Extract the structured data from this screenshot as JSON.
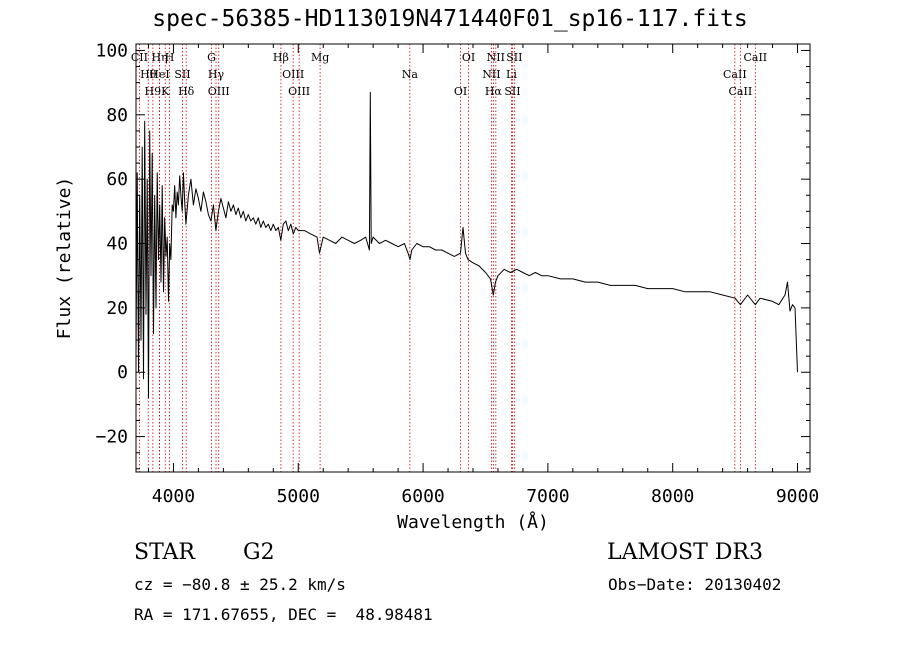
{
  "chart_data": {
    "type": "line",
    "title": "spec-56385-HD113019N471440F01_sp16-117.fits",
    "xlabel": "Wavelength (Å)",
    "ylabel": "Flux (relative)",
    "xlim": [
      3700,
      9100
    ],
    "ylim": [
      -31,
      102
    ],
    "xticks": [
      4000,
      5000,
      6000,
      7000,
      8000,
      9000
    ],
    "yticks": [
      -20,
      0,
      20,
      40,
      60,
      80,
      100
    ],
    "series": [
      {
        "name": "flux",
        "points": [
          [
            3700,
            5
          ],
          [
            3710,
            62
          ],
          [
            3720,
            0
          ],
          [
            3730,
            55
          ],
          [
            3740,
            10
          ],
          [
            3750,
            70
          ],
          [
            3760,
            -2
          ],
          [
            3770,
            78
          ],
          [
            3780,
            18
          ],
          [
            3790,
            60
          ],
          [
            3800,
            -8
          ],
          [
            3810,
            75
          ],
          [
            3820,
            30
          ],
          [
            3830,
            68
          ],
          [
            3840,
            12
          ],
          [
            3850,
            55
          ],
          [
            3860,
            20
          ],
          [
            3870,
            62
          ],
          [
            3880,
            35
          ],
          [
            3890,
            52
          ],
          [
            3900,
            28
          ],
          [
            3910,
            58
          ],
          [
            3920,
            25
          ],
          [
            3930,
            48
          ],
          [
            3940,
            36
          ],
          [
            3950,
            42
          ],
          [
            3960,
            22
          ],
          [
            3970,
            40
          ],
          [
            3980,
            35
          ],
          [
            3990,
            52
          ],
          [
            4000,
            50
          ],
          [
            4010,
            58
          ],
          [
            4020,
            48
          ],
          [
            4030,
            56
          ],
          [
            4040,
            52
          ],
          [
            4050,
            61
          ],
          [
            4060,
            55
          ],
          [
            4070,
            50
          ],
          [
            4080,
            62
          ],
          [
            4090,
            53
          ],
          [
            4100,
            46
          ],
          [
            4120,
            55
          ],
          [
            4140,
            60
          ],
          [
            4160,
            52
          ],
          [
            4180,
            57
          ],
          [
            4200,
            54
          ],
          [
            4220,
            50
          ],
          [
            4240,
            56
          ],
          [
            4260,
            53
          ],
          [
            4280,
            49
          ],
          [
            4300,
            47
          ],
          [
            4320,
            52
          ],
          [
            4340,
            44
          ],
          [
            4360,
            50
          ],
          [
            4380,
            54
          ],
          [
            4400,
            51
          ],
          [
            4420,
            48
          ],
          [
            4440,
            53
          ],
          [
            4460,
            50
          ],
          [
            4480,
            52
          ],
          [
            4500,
            49
          ],
          [
            4520,
            51
          ],
          [
            4540,
            48
          ],
          [
            4560,
            50
          ],
          [
            4580,
            47
          ],
          [
            4600,
            49
          ],
          [
            4620,
            47
          ],
          [
            4640,
            48
          ],
          [
            4660,
            46
          ],
          [
            4680,
            48
          ],
          [
            4700,
            45
          ],
          [
            4720,
            47
          ],
          [
            4740,
            45
          ],
          [
            4760,
            46
          ],
          [
            4780,
            44
          ],
          [
            4800,
            46
          ],
          [
            4820,
            44
          ],
          [
            4840,
            45
          ],
          [
            4860,
            41
          ],
          [
            4880,
            46
          ],
          [
            4900,
            47
          ],
          [
            4920,
            44
          ],
          [
            4940,
            46
          ],
          [
            4960,
            43
          ],
          [
            4980,
            45
          ],
          [
            5000,
            44
          ],
          [
            5050,
            44
          ],
          [
            5100,
            43
          ],
          [
            5150,
            42
          ],
          [
            5170,
            37
          ],
          [
            5200,
            42
          ],
          [
            5250,
            41
          ],
          [
            5300,
            40
          ],
          [
            5350,
            42
          ],
          [
            5400,
            41
          ],
          [
            5450,
            40
          ],
          [
            5500,
            41
          ],
          [
            5540,
            42
          ],
          [
            5570,
            38
          ],
          [
            5577,
            87
          ],
          [
            5584,
            40
          ],
          [
            5600,
            42
          ],
          [
            5650,
            40
          ],
          [
            5700,
            41
          ],
          [
            5750,
            40
          ],
          [
            5800,
            39
          ],
          [
            5850,
            40
          ],
          [
            5880,
            37
          ],
          [
            5895,
            35
          ],
          [
            5910,
            38
          ],
          [
            5950,
            40
          ],
          [
            6000,
            39
          ],
          [
            6050,
            39
          ],
          [
            6100,
            38
          ],
          [
            6150,
            38
          ],
          [
            6200,
            37
          ],
          [
            6250,
            36
          ],
          [
            6300,
            37
          ],
          [
            6320,
            45
          ],
          [
            6340,
            37
          ],
          [
            6360,
            35
          ],
          [
            6400,
            34
          ],
          [
            6450,
            33
          ],
          [
            6500,
            31
          ],
          [
            6540,
            29
          ],
          [
            6563,
            24
          ],
          [
            6580,
            28
          ],
          [
            6600,
            30
          ],
          [
            6650,
            32
          ],
          [
            6700,
            31
          ],
          [
            6750,
            32
          ],
          [
            6800,
            31
          ],
          [
            6850,
            30
          ],
          [
            6900,
            31
          ],
          [
            6950,
            30
          ],
          [
            7000,
            30
          ],
          [
            7100,
            29
          ],
          [
            7200,
            29
          ],
          [
            7300,
            28
          ],
          [
            7400,
            28
          ],
          [
            7500,
            27
          ],
          [
            7600,
            27
          ],
          [
            7700,
            27
          ],
          [
            7800,
            26
          ],
          [
            7900,
            26
          ],
          [
            8000,
            26
          ],
          [
            8100,
            25
          ],
          [
            8200,
            25
          ],
          [
            8300,
            25
          ],
          [
            8400,
            24
          ],
          [
            8500,
            23
          ],
          [
            8542,
            21
          ],
          [
            8600,
            24
          ],
          [
            8662,
            21
          ],
          [
            8700,
            23
          ],
          [
            8800,
            22
          ],
          [
            8850,
            21
          ],
          [
            8900,
            24
          ],
          [
            8920,
            28
          ],
          [
            8940,
            19
          ],
          [
            8960,
            21
          ],
          [
            8980,
            20
          ],
          [
            9000,
            0
          ]
        ]
      }
    ],
    "line_labels": [
      {
        "name": "CII",
        "wavelength": 3727
      },
      {
        "name": "Hθ",
        "wavelength": 3798
      },
      {
        "name": "H9",
        "wavelength": 3835
      },
      {
        "name": "Hη",
        "wavelength": 3889
      },
      {
        "name": "HeI",
        "wavelength": 3888
      },
      {
        "name": "K",
        "wavelength": 3934
      },
      {
        "name": "H",
        "wavelength": 3969
      },
      {
        "name": "SII",
        "wavelength": 4072
      },
      {
        "name": "Hδ",
        "wavelength": 4102
      },
      {
        "name": "G",
        "wavelength": 4305
      },
      {
        "name": "Hγ",
        "wavelength": 4341
      },
      {
        "name": "OIII",
        "wavelength": 4363
      },
      {
        "name": "Hβ",
        "wavelength": 4861
      },
      {
        "name": "OIII",
        "wavelength": 4959
      },
      {
        "name": "OIII",
        "wavelength": 5007
      },
      {
        "name": "Mg",
        "wavelength": 5175
      },
      {
        "name": "Na",
        "wavelength": 5894
      },
      {
        "name": "OI",
        "wavelength": 6300
      },
      {
        "name": "OI",
        "wavelength": 6364
      },
      {
        "name": "NII",
        "wavelength": 6548
      },
      {
        "name": "Hα",
        "wavelength": 6563
      },
      {
        "name": "NII",
        "wavelength": 6583
      },
      {
        "name": "Li",
        "wavelength": 6708
      },
      {
        "name": "SII",
        "wavelength": 6716
      },
      {
        "name": "SII",
        "wavelength": 6731
      },
      {
        "name": "CaII",
        "wavelength": 8498
      },
      {
        "name": "CaII",
        "wavelength": 8542
      },
      {
        "name": "CaII",
        "wavelength": 8662
      }
    ]
  },
  "info": {
    "class": "STAR",
    "subclass": "G2",
    "survey": "LAMOST DR3",
    "cz": "cz = −80.8 ± 25.2 km/s",
    "obs_date": "Obs−Date: 20130402",
    "coords": "RA = 171.67655, DEC =  48.98481"
  },
  "colors": {
    "line": "#000000",
    "marker": "#cc0000"
  }
}
